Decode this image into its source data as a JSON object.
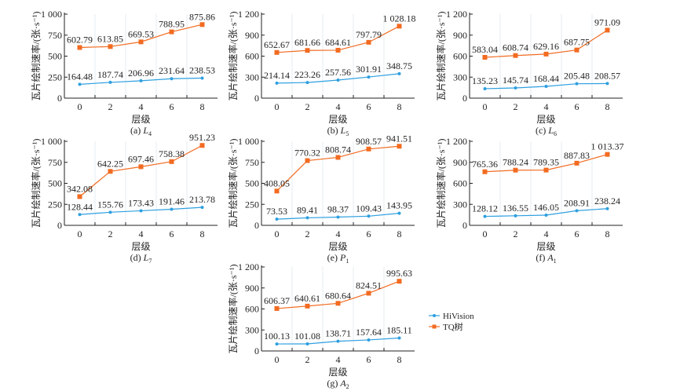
{
  "chart_data": [
    {
      "id": "a",
      "type": "line",
      "caption": "(a) ",
      "caption_var": "L",
      "caption_sub": "4",
      "xlabel": "层级",
      "ylabel": "瓦片绘制速率/(张·s⁻¹)",
      "x": [
        0,
        2,
        4,
        6,
        8
      ],
      "ylim": [
        0,
        1000
      ],
      "yticks": [
        "0",
        "250",
        "500",
        "750",
        "1 000"
      ],
      "ytick_values": [
        0,
        250,
        500,
        750,
        1000
      ],
      "series": [
        {
          "name": "HiVision",
          "values": [
            164.48,
            187.74,
            206.96,
            231.64,
            238.53
          ],
          "labels": [
            "164.48",
            "187.74",
            "206.96",
            "231.64",
            "238.53"
          ]
        },
        {
          "name": "TQ树",
          "values": [
            602.79,
            613.85,
            669.53,
            788.95,
            875.86
          ],
          "labels": [
            "602.79",
            "613.85",
            "669.53",
            "788.95",
            "875.86"
          ]
        }
      ]
    },
    {
      "id": "b",
      "type": "line",
      "caption": "(b) ",
      "caption_var": "L",
      "caption_sub": "5",
      "xlabel": "层级",
      "ylabel": "瓦片绘制速率/(张·s⁻¹)",
      "x": [
        0,
        2,
        4,
        6,
        8
      ],
      "ylim": [
        0,
        1200
      ],
      "yticks": [
        "0",
        "300",
        "600",
        "900",
        "1 200"
      ],
      "ytick_values": [
        0,
        300,
        600,
        900,
        1200
      ],
      "series": [
        {
          "name": "HiVision",
          "values": [
            214.14,
            223.26,
            257.56,
            301.91,
            348.75
          ],
          "labels": [
            "214.14",
            "223.26",
            "257.56",
            "301.91",
            "348.75"
          ]
        },
        {
          "name": "TQ树",
          "values": [
            652.67,
            681.66,
            684.61,
            797.79,
            1028.18
          ],
          "labels": [
            "652.67",
            "681.66",
            "684.61",
            "797.79",
            "1 028.18"
          ]
        }
      ]
    },
    {
      "id": "c",
      "type": "line",
      "caption": "(c) ",
      "caption_var": "L",
      "caption_sub": "6",
      "xlabel": "层级",
      "ylabel": "瓦片绘制速率/(张·s⁻¹)",
      "x": [
        0,
        2,
        4,
        6,
        8
      ],
      "ylim": [
        0,
        1200
      ],
      "yticks": [
        "0",
        "300",
        "600",
        "900",
        "1 200"
      ],
      "ytick_values": [
        0,
        300,
        600,
        900,
        1200
      ],
      "series": [
        {
          "name": "HiVision",
          "values": [
            135.23,
            145.74,
            168.44,
            205.48,
            208.57
          ],
          "labels": [
            "135.23",
            "145.74",
            "168.44",
            "205.48",
            "208.57"
          ]
        },
        {
          "name": "TQ树",
          "values": [
            583.04,
            608.74,
            629.16,
            687.75,
            971.09
          ],
          "labels": [
            "583.04",
            "608.74",
            "629.16",
            "687.75",
            "971.09"
          ]
        }
      ]
    },
    {
      "id": "d",
      "type": "line",
      "caption": "(d) ",
      "caption_var": "L",
      "caption_sub": "7",
      "xlabel": "层级",
      "ylabel": "瓦片绘制速率/(张·s⁻¹)",
      "x": [
        0,
        2,
        4,
        6,
        8
      ],
      "ylim": [
        0,
        1000
      ],
      "yticks": [
        "0",
        "250",
        "500",
        "750",
        "1 000"
      ],
      "ytick_values": [
        0,
        250,
        500,
        750,
        1000
      ],
      "series": [
        {
          "name": "HiVision",
          "values": [
            128.44,
            155.76,
            173.43,
            191.46,
            213.78
          ],
          "labels": [
            "128.44",
            "155.76",
            "173.43",
            "191.46",
            "213.78"
          ]
        },
        {
          "name": "TQ树",
          "values": [
            342.08,
            642.25,
            697.46,
            758.38,
            951.23
          ],
          "labels": [
            "342.08",
            "642.25",
            "697.46",
            "758.38",
            "951.23"
          ]
        }
      ]
    },
    {
      "id": "e",
      "type": "line",
      "caption": "(e) ",
      "caption_var": "P",
      "caption_sub": "1",
      "xlabel": "层级",
      "ylabel": "瓦片绘制速率/(张·s⁻¹)",
      "x": [
        0,
        2,
        4,
        6,
        8
      ],
      "ylim": [
        0,
        1000
      ],
      "yticks": [
        "0",
        "250",
        "500",
        "750",
        "1 000"
      ],
      "ytick_values": [
        0,
        250,
        500,
        750,
        1000
      ],
      "series": [
        {
          "name": "HiVision",
          "values": [
            73.53,
            89.41,
            98.37,
            109.43,
            143.95
          ],
          "labels": [
            "73.53",
            "89.41",
            "98.37",
            "109.43",
            "143.95"
          ]
        },
        {
          "name": "TQ树",
          "values": [
            408.05,
            770.32,
            808.74,
            908.57,
            941.51
          ],
          "labels": [
            "408.05",
            "770.32",
            "808.74",
            "908.57",
            "941.51"
          ]
        }
      ]
    },
    {
      "id": "f",
      "type": "line",
      "caption": "(f) ",
      "caption_var": "A",
      "caption_sub": "1",
      "xlabel": "层级",
      "ylabel": "瓦片绘制速率/(张·s⁻¹)",
      "x": [
        0,
        2,
        4,
        6,
        8
      ],
      "ylim": [
        0,
        1200
      ],
      "yticks": [
        "0",
        "300",
        "600",
        "900",
        "1 200"
      ],
      "ytick_values": [
        0,
        300,
        600,
        900,
        1200
      ],
      "series": [
        {
          "name": "HiVision",
          "values": [
            128.12,
            136.55,
            146.05,
            208.91,
            238.24
          ],
          "labels": [
            "128.12",
            "136.55",
            "146.05",
            "208.91",
            "238.24"
          ]
        },
        {
          "name": "TQ树",
          "values": [
            765.36,
            788.24,
            789.35,
            887.83,
            1013.37
          ],
          "labels": [
            "765.36",
            "788.24",
            "789.35",
            "887.83",
            "1 013.37"
          ]
        }
      ]
    },
    {
      "id": "g",
      "type": "line",
      "caption": "(g) ",
      "caption_var": "A",
      "caption_sub": "2",
      "xlabel": "层级",
      "ylabel": "瓦片绘制速率/(张·s⁻¹)",
      "x": [
        0,
        2,
        4,
        6,
        8
      ],
      "ylim": [
        0,
        1200
      ],
      "yticks": [
        "0",
        "300",
        "600",
        "900",
        "1 200"
      ],
      "ytick_values": [
        0,
        300,
        600,
        900,
        1200
      ],
      "series": [
        {
          "name": "HiVision",
          "values": [
            100.13,
            101.08,
            138.71,
            157.64,
            185.11
          ],
          "labels": [
            "100.13",
            "101.08",
            "138.71",
            "157.64",
            "185.11"
          ]
        },
        {
          "name": "TQ树",
          "values": [
            606.37,
            640.61,
            680.64,
            824.51,
            995.63
          ],
          "labels": [
            "606.37",
            "640.61",
            "680.64",
            "824.51",
            "995.63"
          ]
        }
      ]
    }
  ],
  "legend": {
    "placement": "right",
    "items": [
      {
        "label": "HiVision",
        "color": "#2e9fe0",
        "marker": "dot"
      },
      {
        "label": "TQ树",
        "color": "#f26b21",
        "marker": "square"
      }
    ]
  }
}
